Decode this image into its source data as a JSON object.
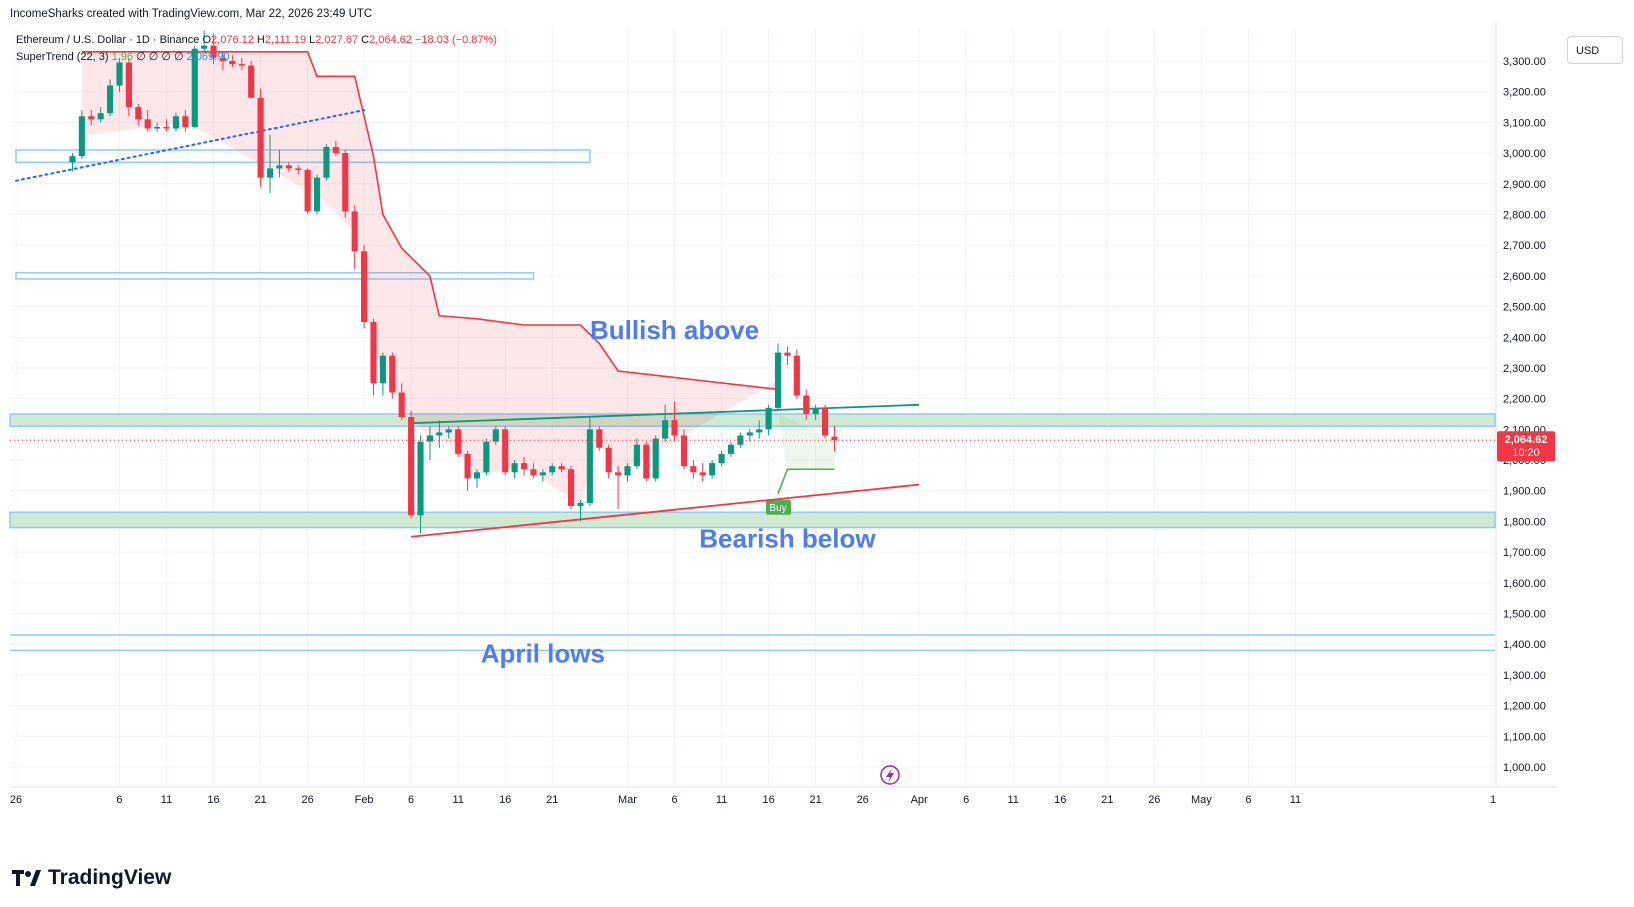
{
  "attribution": "IncomeSharks created with TradingView.com, Mar 22, 2026 23:49 UTC",
  "legend": {
    "symbol": "Ethereum / U.S. Dollar · 1D · Binance",
    "o_label": "O",
    "o_value": "2,076.12",
    "h_label": "H",
    "h_value": "2,111.19",
    "l_label": "L",
    "l_value": "2,027.67",
    "c_label": "C",
    "c_value": "2,064.62",
    "change": "−18.03 (−0.87%)",
    "indicator": "SuperTrend (22, 3)",
    "indicator_value_green": "1,96",
    "indicator_value_blue": "2,069.90",
    "indicator_placeholders": "∅ ∅ ∅ ∅"
  },
  "currency_button": "USD",
  "price_label": {
    "price": "2,064.62",
    "countdown": "10:20"
  },
  "brand": "TradingView",
  "buy_label": "Buy",
  "colors": {
    "up": "#089981",
    "down": "#f23645",
    "grid": "#f0f3fa",
    "zone_fill": "#c8e6c9",
    "zone_border": "#90caf9",
    "annotation": "#4d7cf5",
    "supertrend_down": "#f23645",
    "supertrend_up": "#4caf50"
  },
  "chart_data": {
    "type": "candlestick",
    "y_axis": {
      "min": 950,
      "max": 3400,
      "ticks": [
        1000,
        1100,
        1200,
        1300,
        1400,
        1500,
        1600,
        1700,
        1800,
        1900,
        2000,
        2100,
        2200,
        2300,
        2400,
        2500,
        2600,
        2700,
        2800,
        2900,
        3000,
        3100,
        3200,
        3300
      ],
      "tick_labels": [
        "1,000.00",
        "1,100.00",
        "1,200.00",
        "1,300.00",
        "1,400.00",
        "1,500.00",
        "1,600.00",
        "1,700.00",
        "1,800.00",
        "1,900.00",
        "2,000.00",
        "2,100.00",
        "2,200.00",
        "2,300.00",
        "2,400.00",
        "2,500.00",
        "2,600.00",
        "2,700.00",
        "2,800.00",
        "2,900.00",
        "3,000.00",
        "3,100.00",
        "3,200.00",
        "3,300.00"
      ]
    },
    "x_axis": {
      "start_date": "2025-12-26",
      "end_date": "2026-06-01",
      "ticks": [
        {
          "date": "2025-12-26",
          "label": "26"
        },
        {
          "date": "2026-01-06",
          "label": "6"
        },
        {
          "date": "2026-01-11",
          "label": "11"
        },
        {
          "date": "2026-01-16",
          "label": "16"
        },
        {
          "date": "2026-01-21",
          "label": "21"
        },
        {
          "date": "2026-01-26",
          "label": "26"
        },
        {
          "date": "2026-02-01",
          "label": "Feb"
        },
        {
          "date": "2026-02-06",
          "label": "6"
        },
        {
          "date": "2026-02-11",
          "label": "11"
        },
        {
          "date": "2026-02-16",
          "label": "16"
        },
        {
          "date": "2026-02-21",
          "label": "21"
        },
        {
          "date": "2026-03-01",
          "label": "Mar"
        },
        {
          "date": "2026-03-06",
          "label": "6"
        },
        {
          "date": "2026-03-11",
          "label": "11"
        },
        {
          "date": "2026-03-16",
          "label": "16"
        },
        {
          "date": "2026-03-21",
          "label": "21"
        },
        {
          "date": "2026-03-26",
          "label": "26"
        },
        {
          "date": "2026-04-01",
          "label": "Apr"
        },
        {
          "date": "2026-04-06",
          "label": "6"
        },
        {
          "date": "2026-04-11",
          "label": "11"
        },
        {
          "date": "2026-04-16",
          "label": "16"
        },
        {
          "date": "2026-04-21",
          "label": "21"
        },
        {
          "date": "2026-04-26",
          "label": "26"
        },
        {
          "date": "2026-05-01",
          "label": "May"
        },
        {
          "date": "2026-05-06",
          "label": "6"
        },
        {
          "date": "2026-05-11",
          "label": "11"
        },
        {
          "date": "2026-06-01",
          "label": "1"
        }
      ]
    },
    "candles": [
      {
        "date": "2026-01-01",
        "o": 2970,
        "h": 3000,
        "l": 2940,
        "c": 2990
      },
      {
        "date": "2026-01-02",
        "o": 2990,
        "h": 3140,
        "l": 2980,
        "c": 3120
      },
      {
        "date": "2026-01-03",
        "o": 3120,
        "h": 3140,
        "l": 3090,
        "c": 3110
      },
      {
        "date": "2026-01-04",
        "o": 3110,
        "h": 3150,
        "l": 3100,
        "c": 3130
      },
      {
        "date": "2026-01-05",
        "o": 3130,
        "h": 3240,
        "l": 3120,
        "c": 3220
      },
      {
        "date": "2026-01-06",
        "o": 3220,
        "h": 3310,
        "l": 3200,
        "c": 3295
      },
      {
        "date": "2026-01-07",
        "o": 3295,
        "h": 3310,
        "l": 3120,
        "c": 3150
      },
      {
        "date": "2026-01-08",
        "o": 3150,
        "h": 3160,
        "l": 3090,
        "c": 3110
      },
      {
        "date": "2026-01-09",
        "o": 3110,
        "h": 3140,
        "l": 3070,
        "c": 3080
      },
      {
        "date": "2026-01-10",
        "o": 3080,
        "h": 3100,
        "l": 3070,
        "c": 3085
      },
      {
        "date": "2026-01-11",
        "o": 3085,
        "h": 3110,
        "l": 3070,
        "c": 3080
      },
      {
        "date": "2026-01-12",
        "o": 3080,
        "h": 3130,
        "l": 3070,
        "c": 3120
      },
      {
        "date": "2026-01-13",
        "o": 3120,
        "h": 3140,
        "l": 3070,
        "c": 3085
      },
      {
        "date": "2026-01-14",
        "o": 3085,
        "h": 3350,
        "l": 3080,
        "c": 3340
      },
      {
        "date": "2026-01-15",
        "o": 3340,
        "h": 3400,
        "l": 3330,
        "c": 3350
      },
      {
        "date": "2026-01-16",
        "o": 3350,
        "h": 3390,
        "l": 3290,
        "c": 3310
      },
      {
        "date": "2026-01-17",
        "o": 3310,
        "h": 3330,
        "l": 3270,
        "c": 3300
      },
      {
        "date": "2026-01-18",
        "o": 3300,
        "h": 3320,
        "l": 3280,
        "c": 3290
      },
      {
        "date": "2026-01-19",
        "o": 3290,
        "h": 3310,
        "l": 3270,
        "c": 3285
      },
      {
        "date": "2026-01-20",
        "o": 3285,
        "h": 3300,
        "l": 3180,
        "c": 3180
      },
      {
        "date": "2026-01-21",
        "o": 3180,
        "h": 3210,
        "l": 2890,
        "c": 2920
      },
      {
        "date": "2026-01-22",
        "o": 2920,
        "h": 3060,
        "l": 2870,
        "c": 2950
      },
      {
        "date": "2026-01-23",
        "o": 2950,
        "h": 3010,
        "l": 2920,
        "c": 2960
      },
      {
        "date": "2026-01-24",
        "o": 2960,
        "h": 2970,
        "l": 2940,
        "c": 2950
      },
      {
        "date": "2026-01-25",
        "o": 2950,
        "h": 2960,
        "l": 2930,
        "c": 2945
      },
      {
        "date": "2026-01-26",
        "o": 2945,
        "h": 2950,
        "l": 2800,
        "c": 2810
      },
      {
        "date": "2026-01-27",
        "o": 2810,
        "h": 2930,
        "l": 2800,
        "c": 2920
      },
      {
        "date": "2026-01-28",
        "o": 2920,
        "h": 3030,
        "l": 2910,
        "c": 3020
      },
      {
        "date": "2026-01-29",
        "o": 3020,
        "h": 3040,
        "l": 2990,
        "c": 3000
      },
      {
        "date": "2026-01-30",
        "o": 3000,
        "h": 3010,
        "l": 2790,
        "c": 2810
      },
      {
        "date": "2026-01-31",
        "o": 2810,
        "h": 2830,
        "l": 2620,
        "c": 2680
      },
      {
        "date": "2026-02-01",
        "o": 2680,
        "h": 2700,
        "l": 2430,
        "c": 2450
      },
      {
        "date": "2026-02-02",
        "o": 2450,
        "h": 2460,
        "l": 2210,
        "c": 2250
      },
      {
        "date": "2026-02-03",
        "o": 2250,
        "h": 2350,
        "l": 2210,
        "c": 2340
      },
      {
        "date": "2026-02-04",
        "o": 2340,
        "h": 2350,
        "l": 2200,
        "c": 2220
      },
      {
        "date": "2026-02-05",
        "o": 2220,
        "h": 2250,
        "l": 2130,
        "c": 2140
      },
      {
        "date": "2026-02-06",
        "o": 2140,
        "h": 2160,
        "l": 1810,
        "c": 1820
      },
      {
        "date": "2026-02-07",
        "o": 1820,
        "h": 2080,
        "l": 1760,
        "c": 2060
      },
      {
        "date": "2026-02-08",
        "o": 2060,
        "h": 2110,
        "l": 2000,
        "c": 2080
      },
      {
        "date": "2026-02-09",
        "o": 2080,
        "h": 2130,
        "l": 2040,
        "c": 2090
      },
      {
        "date": "2026-02-10",
        "o": 2090,
        "h": 2110,
        "l": 2070,
        "c": 2100
      },
      {
        "date": "2026-02-11",
        "o": 2100,
        "h": 2110,
        "l": 2010,
        "c": 2020
      },
      {
        "date": "2026-02-12",
        "o": 2020,
        "h": 2030,
        "l": 1900,
        "c": 1940
      },
      {
        "date": "2026-02-13",
        "o": 1940,
        "h": 1970,
        "l": 1910,
        "c": 1960
      },
      {
        "date": "2026-02-14",
        "o": 1960,
        "h": 2070,
        "l": 1950,
        "c": 2060
      },
      {
        "date": "2026-02-15",
        "o": 2060,
        "h": 2110,
        "l": 2050,
        "c": 2100
      },
      {
        "date": "2026-02-16",
        "o": 2100,
        "h": 2110,
        "l": 1950,
        "c": 1960
      },
      {
        "date": "2026-02-17",
        "o": 1960,
        "h": 2000,
        "l": 1940,
        "c": 1990
      },
      {
        "date": "2026-02-18",
        "o": 1990,
        "h": 2010,
        "l": 1950,
        "c": 1970
      },
      {
        "date": "2026-02-19",
        "o": 1970,
        "h": 1990,
        "l": 1940,
        "c": 1950
      },
      {
        "date": "2026-02-20",
        "o": 1950,
        "h": 1970,
        "l": 1930,
        "c": 1960
      },
      {
        "date": "2026-02-21",
        "o": 1960,
        "h": 1990,
        "l": 1950,
        "c": 1980
      },
      {
        "date": "2026-02-22",
        "o": 1980,
        "h": 1990,
        "l": 1960,
        "c": 1970
      },
      {
        "date": "2026-02-23",
        "o": 1970,
        "h": 1980,
        "l": 1840,
        "c": 1850
      },
      {
        "date": "2026-02-24",
        "o": 1850,
        "h": 1870,
        "l": 1800,
        "c": 1860
      },
      {
        "date": "2026-02-25",
        "o": 1860,
        "h": 2140,
        "l": 1850,
        "c": 2100
      },
      {
        "date": "2026-02-26",
        "o": 2100,
        "h": 2110,
        "l": 2030,
        "c": 2040
      },
      {
        "date": "2026-02-27",
        "o": 2040,
        "h": 2050,
        "l": 1940,
        "c": 1960
      },
      {
        "date": "2026-02-28",
        "o": 1960,
        "h": 1980,
        "l": 1840,
        "c": 1950
      },
      {
        "date": "2026-03-01",
        "o": 1950,
        "h": 1990,
        "l": 1930,
        "c": 1980
      },
      {
        "date": "2026-03-02",
        "o": 1980,
        "h": 2070,
        "l": 1970,
        "c": 2050
      },
      {
        "date": "2026-03-03",
        "o": 2050,
        "h": 2060,
        "l": 1930,
        "c": 1940
      },
      {
        "date": "2026-03-04",
        "o": 1940,
        "h": 2080,
        "l": 1930,
        "c": 2070
      },
      {
        "date": "2026-03-05",
        "o": 2070,
        "h": 2180,
        "l": 2060,
        "c": 2130
      },
      {
        "date": "2026-03-06",
        "o": 2130,
        "h": 2190,
        "l": 2060,
        "c": 2080
      },
      {
        "date": "2026-03-07",
        "o": 2080,
        "h": 2100,
        "l": 1970,
        "c": 1980
      },
      {
        "date": "2026-03-08",
        "o": 1980,
        "h": 2000,
        "l": 1940,
        "c": 1960
      },
      {
        "date": "2026-03-09",
        "o": 1960,
        "h": 1990,
        "l": 1930,
        "c": 1950
      },
      {
        "date": "2026-03-10",
        "o": 1950,
        "h": 2000,
        "l": 1940,
        "c": 1990
      },
      {
        "date": "2026-03-11",
        "o": 1990,
        "h": 2030,
        "l": 1980,
        "c": 2020
      },
      {
        "date": "2026-03-12",
        "o": 2020,
        "h": 2060,
        "l": 2010,
        "c": 2050
      },
      {
        "date": "2026-03-13",
        "o": 2050,
        "h": 2090,
        "l": 2040,
        "c": 2080
      },
      {
        "date": "2026-03-14",
        "o": 2080,
        "h": 2100,
        "l": 2060,
        "c": 2090
      },
      {
        "date": "2026-03-15",
        "o": 2090,
        "h": 2130,
        "l": 2070,
        "c": 2100
      },
      {
        "date": "2026-03-16",
        "o": 2100,
        "h": 2180,
        "l": 2080,
        "c": 2170
      },
      {
        "date": "2026-03-17",
        "o": 2170,
        "h": 2380,
        "l": 2160,
        "c": 2350
      },
      {
        "date": "2026-03-18",
        "o": 2350,
        "h": 2370,
        "l": 2310,
        "c": 2340
      },
      {
        "date": "2026-03-19",
        "o": 2340,
        "h": 2360,
        "l": 2200,
        "c": 2210
      },
      {
        "date": "2026-03-20",
        "o": 2210,
        "h": 2230,
        "l": 2130,
        "c": 2150
      },
      {
        "date": "2026-03-21",
        "o": 2150,
        "h": 2180,
        "l": 2130,
        "c": 2170
      },
      {
        "date": "2026-03-22",
        "o": 2170,
        "h": 2180,
        "l": 2070,
        "c": 2080
      },
      {
        "date": "2026-03-23",
        "o": 2076.12,
        "h": 2111.19,
        "l": 2027.67,
        "c": 2064.62
      }
    ],
    "supertrend": [
      {
        "date": "2026-01-02",
        "value": 3330
      },
      {
        "date": "2026-01-13",
        "value": 3330
      },
      {
        "date": "2026-01-26",
        "value": 3330
      },
      {
        "date": "2026-01-27",
        "value": 3250
      },
      {
        "date": "2026-01-31",
        "value": 3250
      },
      {
        "date": "2026-02-02",
        "value": 2990
      },
      {
        "date": "2026-02-03",
        "value": 2800
      },
      {
        "date": "2026-02-05",
        "value": 2690
      },
      {
        "date": "2026-02-08",
        "value": 2600
      },
      {
        "date": "2026-02-09",
        "value": 2470
      },
      {
        "date": "2026-02-13",
        "value": 2460
      },
      {
        "date": "2026-02-18",
        "value": 2440
      },
      {
        "date": "2026-02-24",
        "value": 2440
      },
      {
        "date": "2026-02-26",
        "value": 2380
      },
      {
        "date": "2026-02-28",
        "value": 2290
      },
      {
        "date": "2026-03-17",
        "value": 2230
      },
      {
        "date": "2026-03-18",
        "value": 1970
      },
      {
        "date": "2026-03-23",
        "value": 1970
      }
    ],
    "zones": [
      {
        "from": 2110,
        "to": 2150,
        "label": ""
      },
      {
        "from": 1780,
        "to": 1830,
        "label": ""
      },
      {
        "from": 2970,
        "to": 3010,
        "x_start": "2025-12-26",
        "x_end": "2026-02-25",
        "label": ""
      },
      {
        "from": 2590,
        "to": 2610,
        "x_start": "2025-12-26",
        "x_end": "2026-02-19",
        "label": ""
      }
    ],
    "horizontal_lines": [
      1430,
      1380
    ],
    "trend_lines": [
      {
        "from": {
          "date": "2026-02-06",
          "value": 2120
        },
        "to": {
          "date": "2026-04-01",
          "value": 2180
        },
        "color": "#089981",
        "style": "solid"
      },
      {
        "from": {
          "date": "2026-02-06",
          "value": 1750
        },
        "to": {
          "date": "2026-04-01",
          "value": 1920
        },
        "color": "#f23645",
        "style": "solid"
      },
      {
        "from": {
          "date": "2025-12-26",
          "value": 2910
        },
        "to": {
          "date": "2026-02-01",
          "value": 3140
        },
        "color": "#2962ff",
        "style": "dotted"
      }
    ],
    "annotations": [
      {
        "text": "Bullish above",
        "date": "2026-03-06",
        "value": 2395
      },
      {
        "text": "Bearish below",
        "date": "2026-03-18",
        "value": 1715
      },
      {
        "text": "April lows",
        "date": "2026-02-20",
        "value": 1340
      }
    ],
    "last_price": 2064.62
  }
}
